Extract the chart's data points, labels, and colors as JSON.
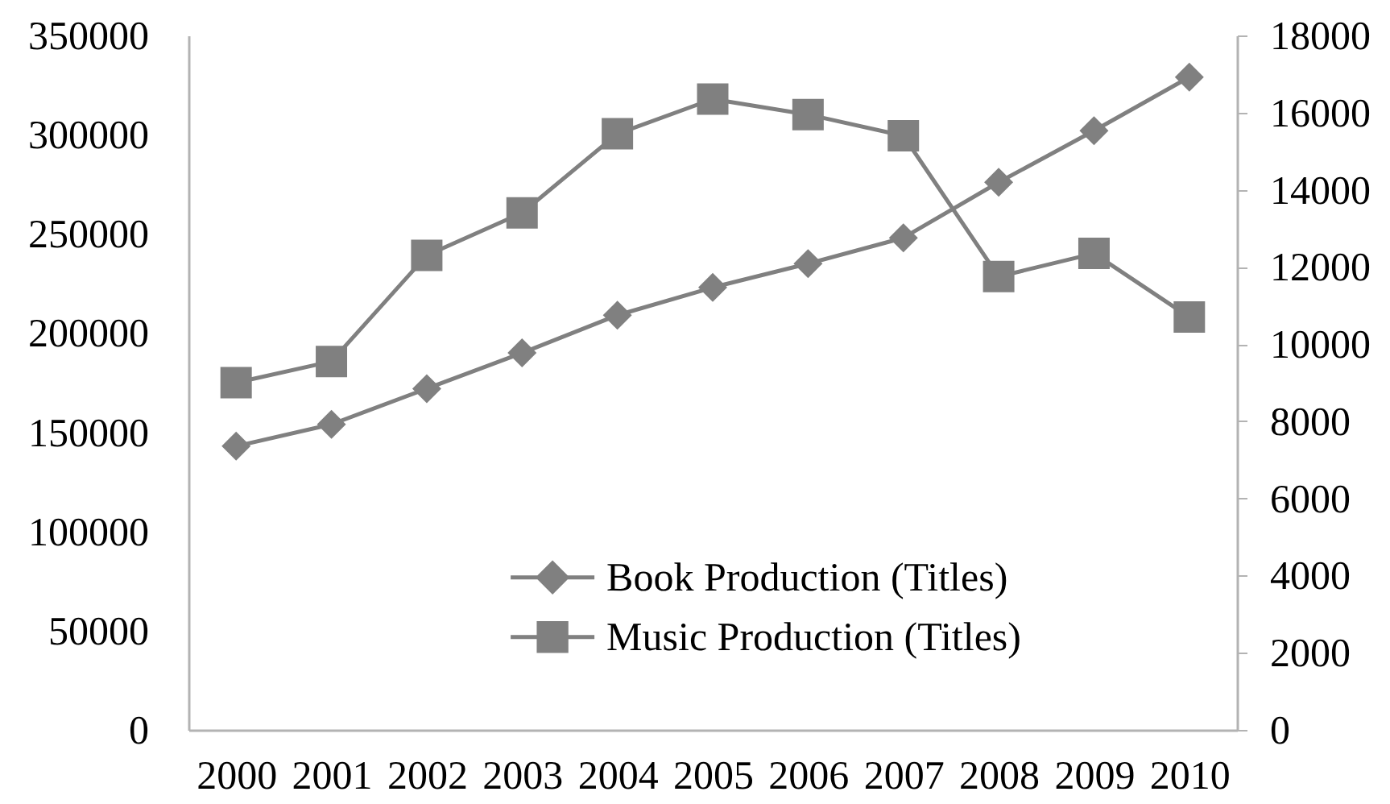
{
  "chart_data": {
    "type": "line",
    "categories": [
      "2000",
      "2001",
      "2002",
      "2003",
      "2004",
      "2005",
      "2006",
      "2007",
      "2008",
      "2009",
      "2010"
    ],
    "series": [
      {
        "name": "Book Production (Titles)",
        "color": "#808080",
        "marker": "diamond",
        "values": [
          143000,
          154000,
          172000,
          190000,
          209000,
          223000,
          235000,
          248000,
          276000,
          302000,
          329000
        ]
      },
      {
        "name": "Music Production (Titles)",
        "color": "#808080",
        "marker": "square",
        "axis": "y2",
        "values": [
          9000,
          9550,
          12300,
          13400,
          15450,
          16350,
          15950,
          15400,
          11750,
          12350,
          10700
        ]
      }
    ],
    "ylim": [
      0,
      350000
    ],
    "yticks": [
      0,
      50000,
      100000,
      150000,
      200000,
      250000,
      300000,
      350000
    ],
    "y2lim": [
      0,
      18000
    ],
    "y2ticks": [
      0,
      2000,
      4000,
      6000,
      8000,
      10000,
      12000,
      14000,
      16000,
      18000
    ],
    "grid": false,
    "legend": "bottom"
  }
}
